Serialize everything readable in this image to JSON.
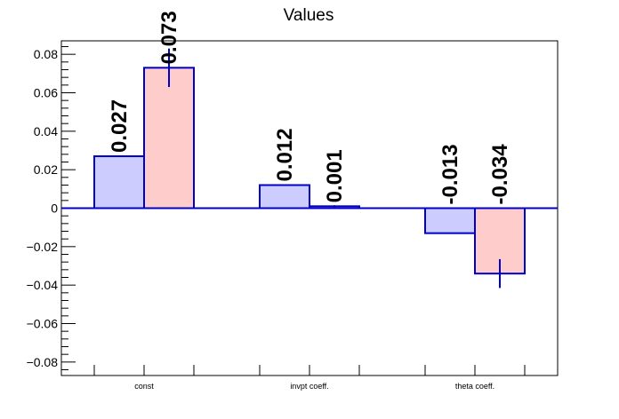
{
  "chart_data": {
    "type": "bar",
    "title": "Values",
    "xlabel": "",
    "ylabel": "",
    "categories": [
      "const",
      "invpt coeff.",
      "theta coeff."
    ],
    "series": [
      {
        "values": [
          0.027,
          0.012,
          -0.013
        ],
        "errors": [
          0,
          0,
          0
        ],
        "labels": [
          "0.027",
          "0.012",
          "-0.013"
        ],
        "fill": "#ccccff",
        "stroke": "#0000cc"
      },
      {
        "values": [
          0.073,
          0.001,
          -0.034
        ],
        "errors": [
          0.01,
          0.0005,
          0.0075
        ],
        "labels": [
          "0.073",
          "0.001",
          "-0.034"
        ],
        "fill": "#ffcccc",
        "stroke": "#0000cc"
      }
    ],
    "ylim": [
      -0.087,
      0.087
    ],
    "yticks": [
      0.08,
      0.06,
      0.04,
      0.02,
      0,
      -0.02,
      -0.04,
      -0.06,
      -0.08
    ],
    "ytick_labels": [
      "0.08",
      "0.06",
      "0.04",
      "0.02",
      "0",
      "−0.02",
      "−0.04",
      "−0.06",
      "−0.08"
    ],
    "grid": false,
    "legend": "none",
    "error_bar_color": "#0000cc",
    "zero_line_color": "#0000cc"
  }
}
